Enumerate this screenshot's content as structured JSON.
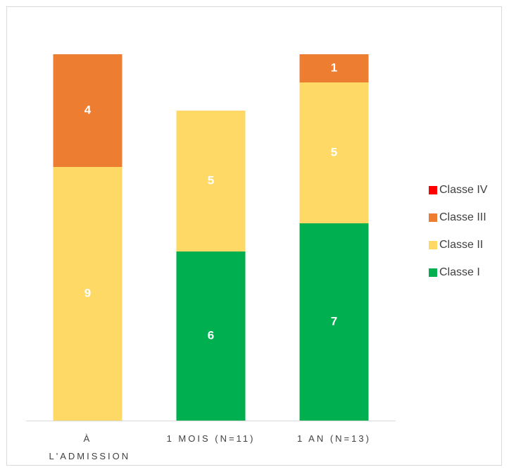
{
  "chart_data": {
    "type": "stacked-bar",
    "categories": [
      "À L'ADMISSION",
      "1 MOIS (N=11)",
      "1 AN (N=13)"
    ],
    "series": [
      {
        "name": "Classe I",
        "color": "#00b050",
        "values": [
          0,
          6,
          7
        ]
      },
      {
        "name": "Classe II",
        "color": "#ffd966",
        "values": [
          9,
          5,
          5
        ]
      },
      {
        "name": "Classe III",
        "color": "#ed7d31",
        "values": [
          4,
          0,
          1
        ]
      },
      {
        "name": "Classe IV",
        "color": "#ff0000",
        "values": [
          0,
          0,
          0
        ]
      }
    ],
    "legend": "right"
  }
}
